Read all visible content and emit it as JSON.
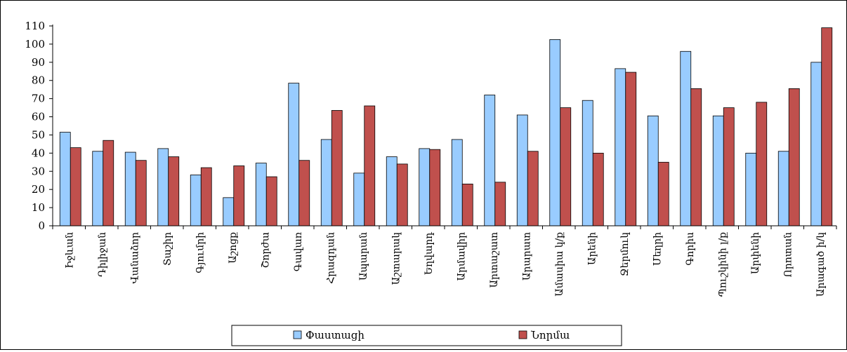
{
  "chart_data": {
    "type": "bar",
    "title": "",
    "xlabel": "",
    "ylabel": "",
    "ylim": [
      0,
      110
    ],
    "yticks": [
      0,
      10,
      20,
      30,
      40,
      50,
      60,
      70,
      80,
      90,
      100,
      110
    ],
    "grid": false,
    "legend_position": "bottom",
    "categories": [
      "Իջևան",
      "Դիլիջան",
      "Վանաձոր",
      "Տաշիր",
      "Գյումրի",
      "Աշոցք",
      "Շորժա",
      "Գավառ",
      "Հրազդան",
      "Ապարան",
      "Աշտարակ",
      "Եղվարդ",
      "Արմավիր",
      "Արտաշատ",
      "Արարատ",
      "Ամասիա կ/ք",
      "Արենի",
      "Ջերմուկ",
      "Մեղրի",
      "Գորիս",
      "Պուշկինի լ/ք",
      "Արփենի",
      "Որոտան",
      "Արագած ի/կ"
    ],
    "series": [
      {
        "name": "Փաստացի",
        "color": "#99ccff",
        "values": [
          51.5,
          41,
          40.5,
          42.5,
          28,
          15.5,
          34.5,
          78.5,
          47.5,
          29,
          38,
          42.5,
          47.5,
          72,
          61,
          102.5,
          69,
          86.5,
          60.5,
          96,
          60.5,
          40,
          41,
          90
        ]
      },
      {
        "name": "Նորմա",
        "color": "#c0504d",
        "values": [
          43,
          47,
          36,
          38,
          32,
          33,
          27,
          36,
          63.5,
          66,
          34,
          42,
          23,
          24,
          41,
          65,
          40,
          84.5,
          35,
          75.5,
          65,
          68,
          75.5,
          109
        ]
      }
    ]
  }
}
